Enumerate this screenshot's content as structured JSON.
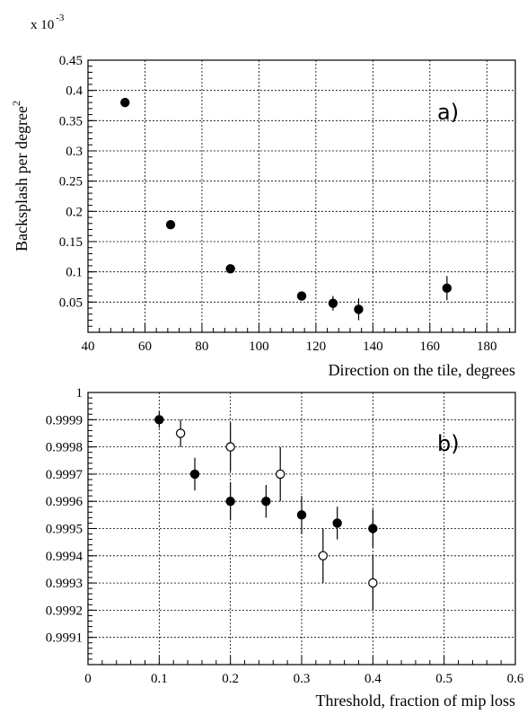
{
  "chart_data": [
    {
      "type": "scatter",
      "panel_label": "a)",
      "exponent_label": "x 10",
      "exponent_power": "-3",
      "xlabel": "Direction on the tile, degrees",
      "ylabel": "Backsplash per degree",
      "ylabel_sup": "2",
      "xlim": [
        40,
        190
      ],
      "ylim": [
        0,
        0.45
      ],
      "x_ticks": [
        40,
        60,
        80,
        100,
        120,
        140,
        160,
        180
      ],
      "y_ticks": [
        0.05,
        0.1,
        0.15,
        0.2,
        0.25,
        0.3,
        0.35,
        0.4,
        0.45
      ],
      "x_tick_labels": [
        "40",
        "60",
        "80",
        "100",
        "120",
        "140",
        "160",
        "180"
      ],
      "y_tick_labels": [
        "0.05",
        "0.1",
        "0.15",
        "0.2",
        "0.25",
        "0.3",
        "0.35",
        "0.4",
        "0.45"
      ],
      "grid": true,
      "series": [
        {
          "marker": "filled",
          "points": [
            {
              "x": 53,
              "y": 0.38,
              "err": 0.003
            },
            {
              "x": 69,
              "y": 0.178,
              "err": 0.003
            },
            {
              "x": 90,
              "y": 0.105,
              "err": 0.004
            },
            {
              "x": 115,
              "y": 0.06,
              "err": 0.007
            },
            {
              "x": 126,
              "y": 0.048,
              "err": 0.012
            },
            {
              "x": 135,
              "y": 0.038,
              "err": 0.018
            },
            {
              "x": 166,
              "y": 0.073,
              "err": 0.02
            }
          ]
        }
      ]
    },
    {
      "type": "scatter",
      "panel_label": "b)",
      "xlabel": "Threshold, fraction of mip loss",
      "ylabel": "",
      "xlim": [
        0,
        0.6
      ],
      "ylim": [
        0.999,
        1.0
      ],
      "x_ticks": [
        0,
        0.1,
        0.2,
        0.3,
        0.4,
        0.5,
        0.6
      ],
      "y_ticks": [
        0.9991,
        0.9992,
        0.9993,
        0.9994,
        0.9995,
        0.9996,
        0.9997,
        0.9998,
        0.9999,
        1.0
      ],
      "x_tick_labels": [
        "0",
        "0.1",
        "0.2",
        "0.3",
        "0.4",
        "0.5",
        "0.6"
      ],
      "y_tick_labels": [
        "0.9991",
        "0.9992",
        "0.9993",
        "0.9994",
        "0.9995",
        "0.9996",
        "0.9997",
        "0.9998",
        "0.9999",
        "1"
      ],
      "grid": true,
      "series": [
        {
          "marker": "filled",
          "points": [
            {
              "x": 0.1,
              "y": 0.9999,
              "err": 3e-05
            },
            {
              "x": 0.15,
              "y": 0.9997,
              "err": 6e-05
            },
            {
              "x": 0.2,
              "y": 0.9996,
              "err": 7e-05
            },
            {
              "x": 0.25,
              "y": 0.9996,
              "err": 6e-05
            },
            {
              "x": 0.3,
              "y": 0.99955,
              "err": 7e-05
            },
            {
              "x": 0.35,
              "y": 0.99952,
              "err": 6e-05
            },
            {
              "x": 0.4,
              "y": 0.9995,
              "err": 7e-05
            }
          ]
        },
        {
          "marker": "open",
          "points": [
            {
              "x": 0.13,
              "y": 0.99985,
              "err": 5e-05
            },
            {
              "x": 0.2,
              "y": 0.9998,
              "err": 9e-05
            },
            {
              "x": 0.27,
              "y": 0.9997,
              "err": 0.0001
            },
            {
              "x": 0.33,
              "y": 0.9994,
              "err": 0.0001
            },
            {
              "x": 0.4,
              "y": 0.9993,
              "err": 0.0001
            }
          ]
        }
      ]
    }
  ]
}
